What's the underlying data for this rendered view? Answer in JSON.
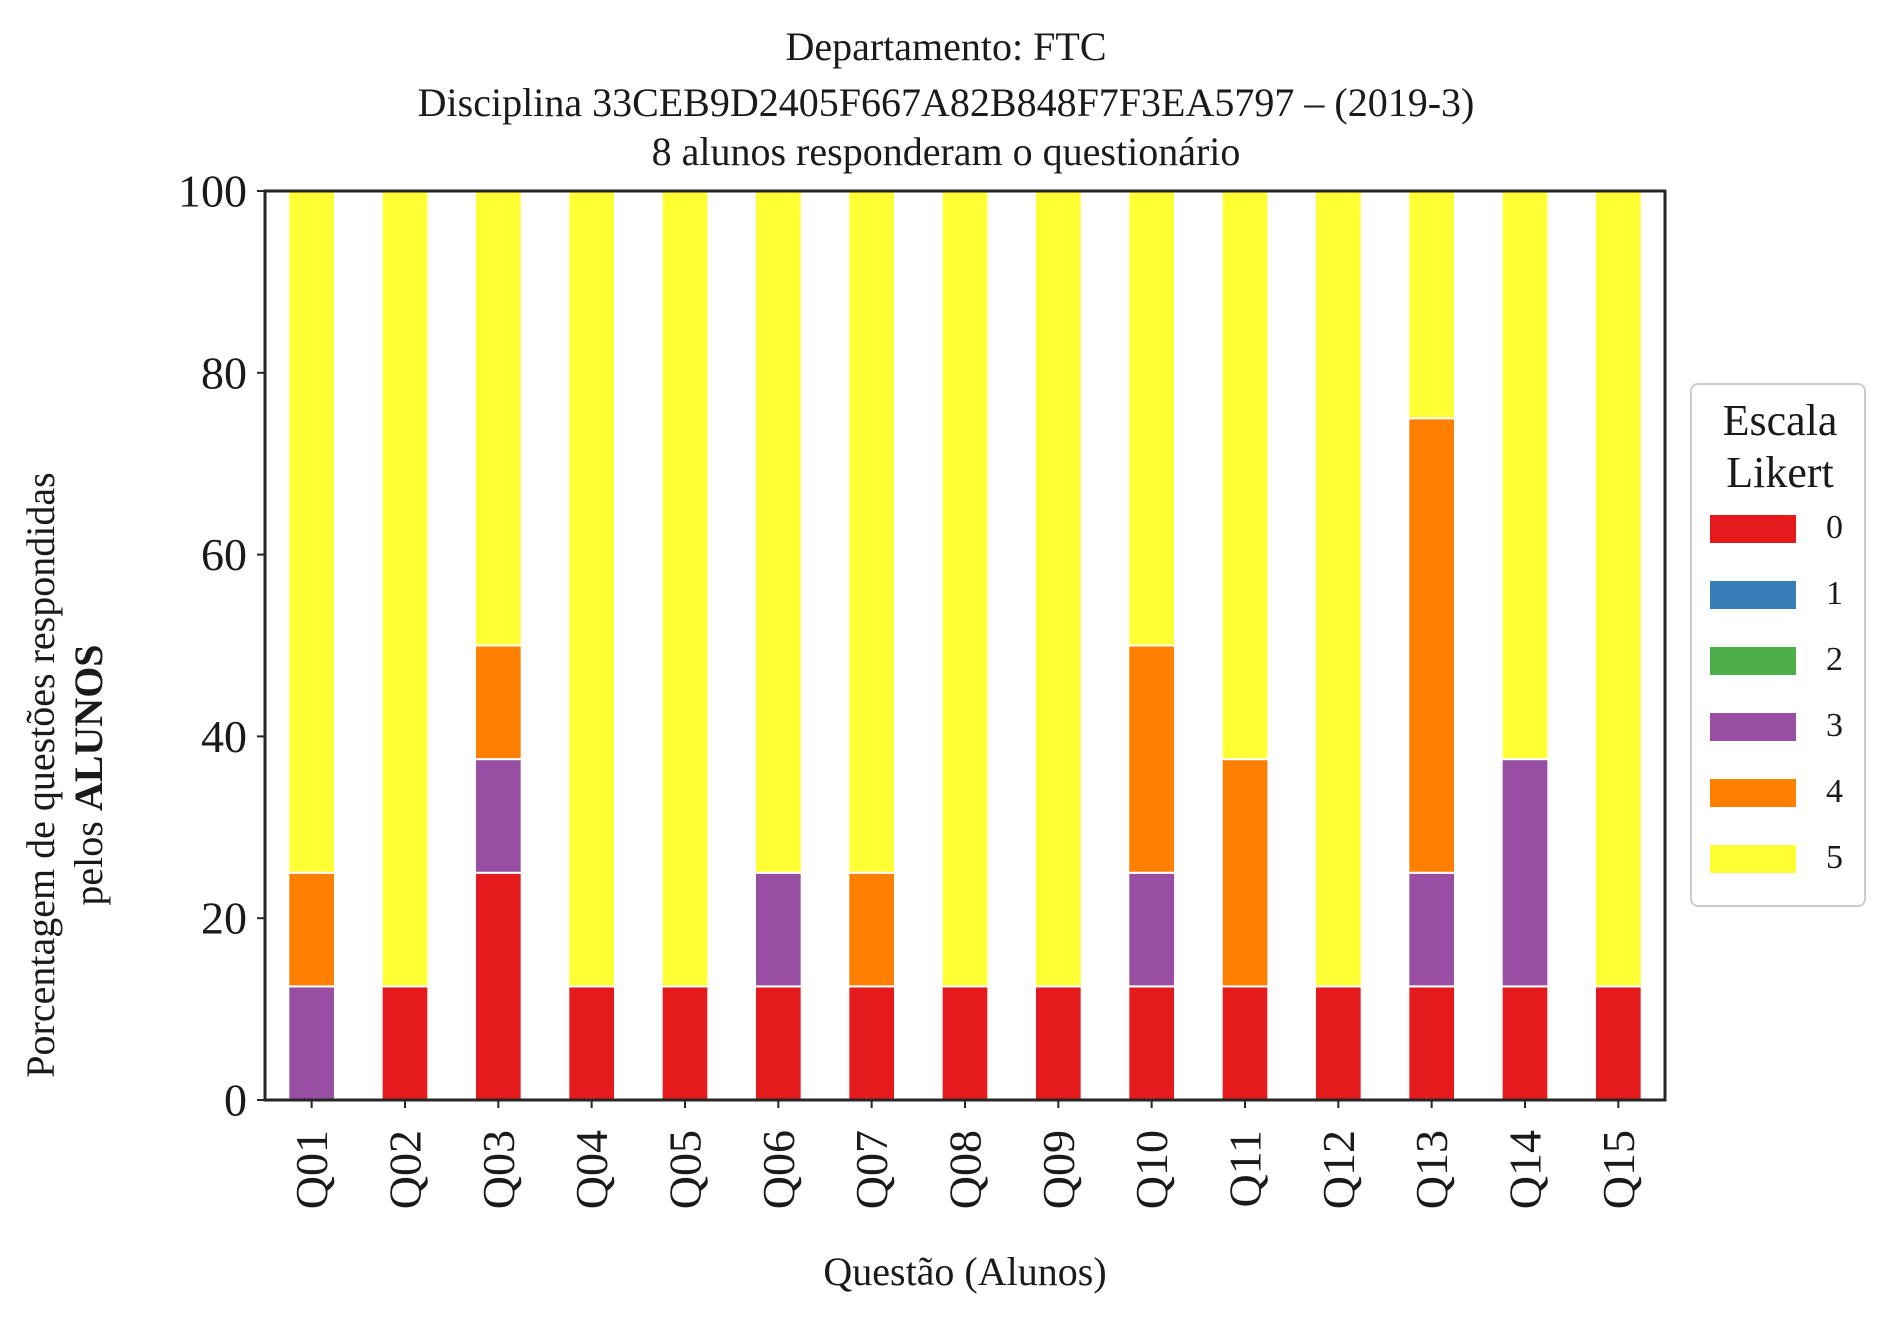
{
  "title": {
    "line1": "Departamento: FTC",
    "line2": "Disciplina 33CEB9D2405F667A82B848F7F3EA5797 – (2019-3)",
    "line3": "8 alunos responderam o questionário"
  },
  "axes": {
    "xlabel": "Questão (Alunos)",
    "ylabel_line1": "Porcentagem de questões respondidas",
    "ylabel_line2_prefix": "pelos ",
    "ylabel_line2_bold": "ALUNOS"
  },
  "legend": {
    "title_line1": "Escala",
    "title_line2": "Likert"
  },
  "chart_data": {
    "type": "bar",
    "stacked": true,
    "categories": [
      "Q01",
      "Q02",
      "Q03",
      "Q04",
      "Q05",
      "Q06",
      "Q07",
      "Q08",
      "Q09",
      "Q10",
      "Q11",
      "Q12",
      "Q13",
      "Q14",
      "Q15"
    ],
    "series": [
      {
        "name": "0",
        "color": "#e41a1c",
        "values": [
          0,
          12.5,
          25,
          12.5,
          12.5,
          12.5,
          12.5,
          12.5,
          12.5,
          12.5,
          12.5,
          12.5,
          12.5,
          12.5,
          12.5
        ]
      },
      {
        "name": "1",
        "color": "#377eb8",
        "values": [
          0,
          0,
          0,
          0,
          0,
          0,
          0,
          0,
          0,
          0,
          0,
          0,
          0,
          0,
          0
        ]
      },
      {
        "name": "2",
        "color": "#4daf4a",
        "values": [
          0,
          0,
          0,
          0,
          0,
          0,
          0,
          0,
          0,
          0,
          0,
          0,
          0,
          0,
          0
        ]
      },
      {
        "name": "3",
        "color": "#984ea3",
        "values": [
          12.5,
          0,
          12.5,
          0,
          0,
          12.5,
          0,
          0,
          0,
          12.5,
          0,
          0,
          12.5,
          25,
          0
        ]
      },
      {
        "name": "4",
        "color": "#ff7f00",
        "values": [
          12.5,
          0,
          12.5,
          0,
          0,
          0,
          12.5,
          0,
          0,
          25,
          25,
          0,
          50,
          0,
          0
        ]
      },
      {
        "name": "5",
        "color": "#ffff33",
        "values": [
          75,
          87.5,
          50,
          87.5,
          87.5,
          75,
          75,
          87.5,
          87.5,
          50,
          62.5,
          87.5,
          25,
          62.5,
          87.5
        ]
      }
    ],
    "ylim": [
      0,
      100
    ],
    "yticks": [
      0,
      20,
      40,
      60,
      80,
      100
    ],
    "grid": false,
    "legend_position": "right"
  }
}
